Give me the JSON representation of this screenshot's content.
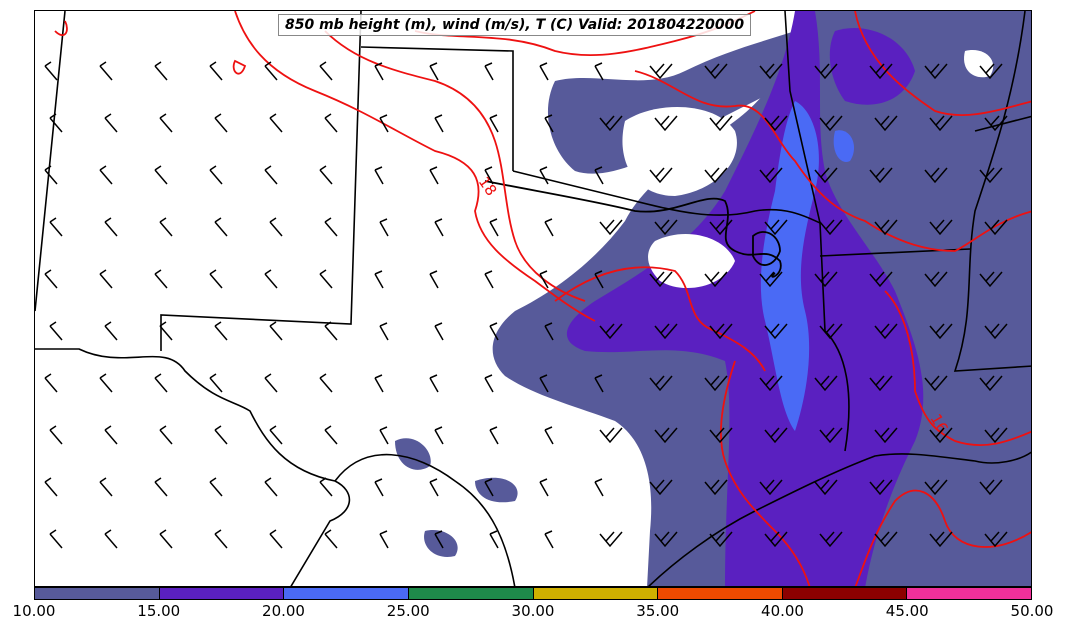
{
  "title": "850 mb height (m), wind (m/s), T (C) Valid: 201804220000",
  "contour_labels": [
    "18",
    "16"
  ],
  "colorbar": {
    "segments": [
      {
        "color": "#575a9a"
      },
      {
        "color": "#5a20c0"
      },
      {
        "color": "#4a6af5"
      },
      {
        "color": "#1e8a4a"
      },
      {
        "color": "#cfb000"
      },
      {
        "color": "#ee4a00"
      },
      {
        "color": "#8c0000"
      },
      {
        "color": "#f0309a"
      }
    ],
    "ticks": [
      "10.00",
      "15.00",
      "20.00",
      "25.00",
      "30.00",
      "35.00",
      "40.00",
      "45.00",
      "50.00"
    ]
  },
  "colors": {
    "temperature_contour": "#ee1111",
    "height_contour": "#000000",
    "borders": "#000000"
  }
}
